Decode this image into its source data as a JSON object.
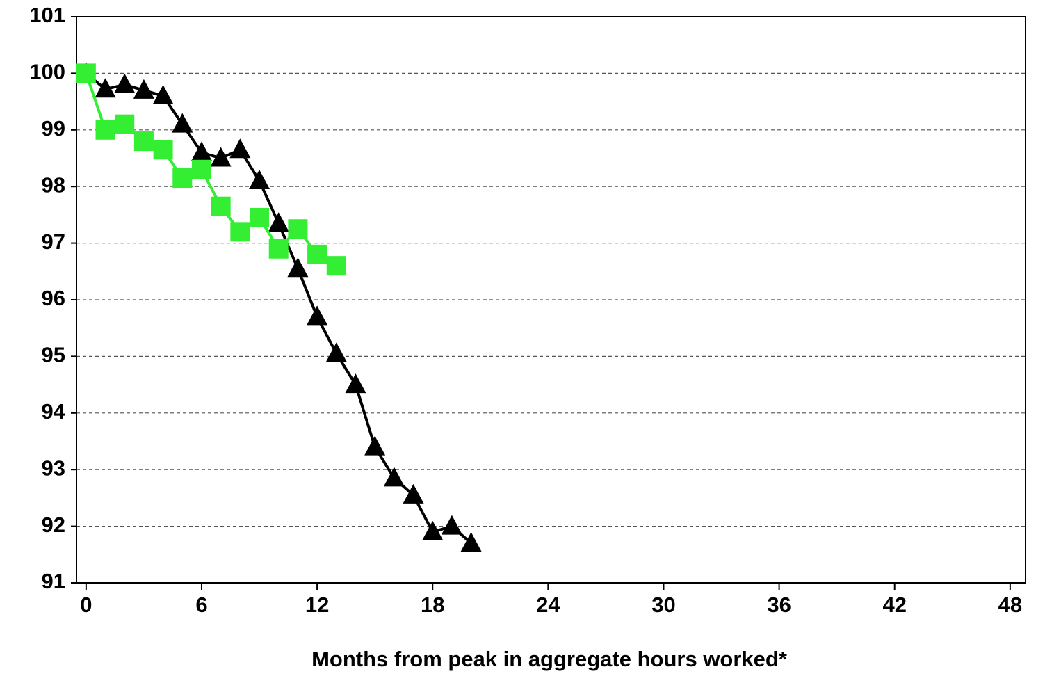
{
  "chart_data": {
    "type": "line",
    "x_label": "Months from peak in aggregate hours worked*",
    "xlim": [
      -0.5,
      48.8
    ],
    "xticks": [
      0,
      6,
      12,
      18,
      24,
      30,
      36,
      42,
      48
    ],
    "ylim": [
      91,
      101
    ],
    "yticks": [
      91,
      92,
      93,
      94,
      95,
      96,
      97,
      98,
      99,
      100,
      101
    ],
    "grid": true,
    "series": [
      {
        "color": "#000000",
        "marker": "triangle",
        "x": [
          0,
          1,
          2,
          3,
          4,
          5,
          6,
          7,
          8,
          9,
          10,
          11,
          12,
          13,
          14,
          15,
          16,
          17,
          18,
          19,
          20
        ],
        "values": [
          100,
          99.72,
          99.8,
          99.7,
          99.6,
          99.1,
          98.6,
          98.5,
          98.65,
          98.1,
          97.35,
          96.55,
          95.7,
          95.05,
          94.5,
          93.4,
          92.85,
          92.55,
          91.9,
          92.0,
          91.7
        ]
      },
      {
        "color": "#33ee33",
        "marker": "square",
        "x": [
          0,
          1,
          2,
          3,
          4,
          5,
          6,
          7,
          8,
          9,
          10,
          11,
          12,
          13
        ],
        "values": [
          100,
          99.0,
          99.1,
          98.8,
          98.65,
          98.15,
          98.3,
          97.65,
          97.2,
          97.45,
          96.9,
          97.25,
          96.8,
          96.6
        ]
      }
    ]
  }
}
